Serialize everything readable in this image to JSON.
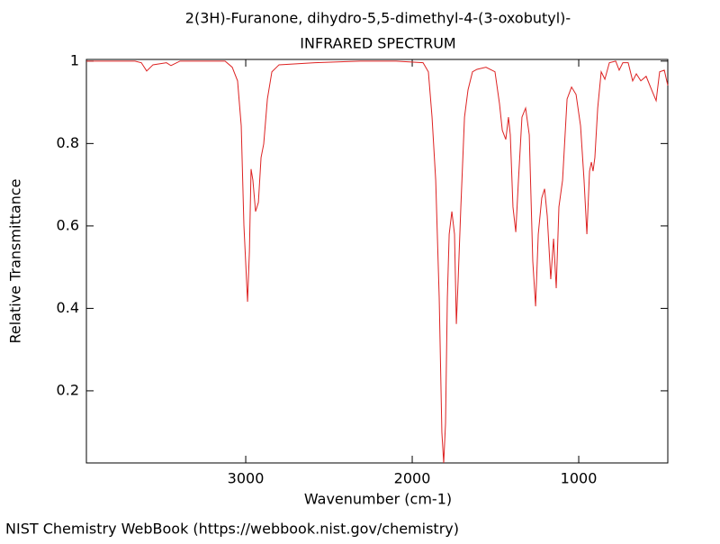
{
  "chart_data": {
    "type": "line",
    "title": "2(3H)-Furanone, dihydro-5,5-dimethyl-4-(3-oxobutyl)-",
    "subtitle": "INFRARED SPECTRUM",
    "x_label": "Wavenumber (cm-1)",
    "y_label": "Relative Transmittance",
    "footer": "NIST Chemistry WebBook (https://webbook.nist.gov/chemistry)",
    "xlim": [
      3957,
      465
    ],
    "ylim": [
      0.025,
      1.004
    ],
    "xticks": [
      3000,
      2000,
      1000
    ],
    "yticks": [
      0.2,
      0.4,
      0.6,
      0.8,
      1
    ],
    "series": [
      {
        "color": "#dd2222",
        "x": [
          3957,
          3665,
          3627,
          3595,
          3557,
          3476,
          3449,
          3395,
          3124,
          3081,
          3049,
          3027,
          3011,
          2989,
          2978,
          2968,
          2957,
          2941,
          2924,
          2908,
          2892,
          2870,
          2843,
          2800,
          2584,
          2314,
          2097,
          1935,
          1903,
          1881,
          1859,
          1838,
          1822,
          1811,
          1800,
          1789,
          1778,
          1762,
          1746,
          1735,
          1724,
          1708,
          1686,
          1665,
          1638,
          1611,
          1557,
          1503,
          1476,
          1459,
          1438,
          1422,
          1411,
          1395,
          1378,
          1362,
          1341,
          1319,
          1297,
          1276,
          1259,
          1243,
          1222,
          1205,
          1189,
          1168,
          1151,
          1135,
          1119,
          1097,
          1070,
          1043,
          1016,
          989,
          968,
          951,
          935,
          924,
          914,
          903,
          886,
          865,
          843,
          816,
          778,
          757,
          735,
          703,
          676,
          654,
          627,
          595,
          562,
          535,
          514,
          486,
          465
        ],
        "values": [
          1.0,
          1.0,
          0.996,
          0.976,
          0.991,
          0.996,
          0.989,
          1.0,
          1.0,
          0.985,
          0.952,
          0.843,
          0.602,
          0.416,
          0.537,
          0.738,
          0.711,
          0.635,
          0.657,
          0.766,
          0.799,
          0.908,
          0.974,
          0.991,
          0.996,
          1.0,
          1.0,
          0.996,
          0.974,
          0.864,
          0.711,
          0.427,
          0.099,
          0.025,
          0.121,
          0.427,
          0.58,
          0.635,
          0.58,
          0.362,
          0.471,
          0.646,
          0.864,
          0.93,
          0.974,
          0.98,
          0.985,
          0.974,
          0.897,
          0.832,
          0.81,
          0.864,
          0.821,
          0.646,
          0.585,
          0.711,
          0.864,
          0.886,
          0.821,
          0.515,
          0.405,
          0.58,
          0.668,
          0.69,
          0.624,
          0.471,
          0.569,
          0.449,
          0.646,
          0.711,
          0.908,
          0.937,
          0.919,
          0.843,
          0.711,
          0.58,
          0.733,
          0.755,
          0.733,
          0.766,
          0.886,
          0.974,
          0.956,
          0.996,
          1.0,
          0.978,
          0.996,
          0.996,
          0.952,
          0.969,
          0.952,
          0.963,
          0.93,
          0.904,
          0.974,
          0.978,
          0.941
        ]
      }
    ]
  }
}
